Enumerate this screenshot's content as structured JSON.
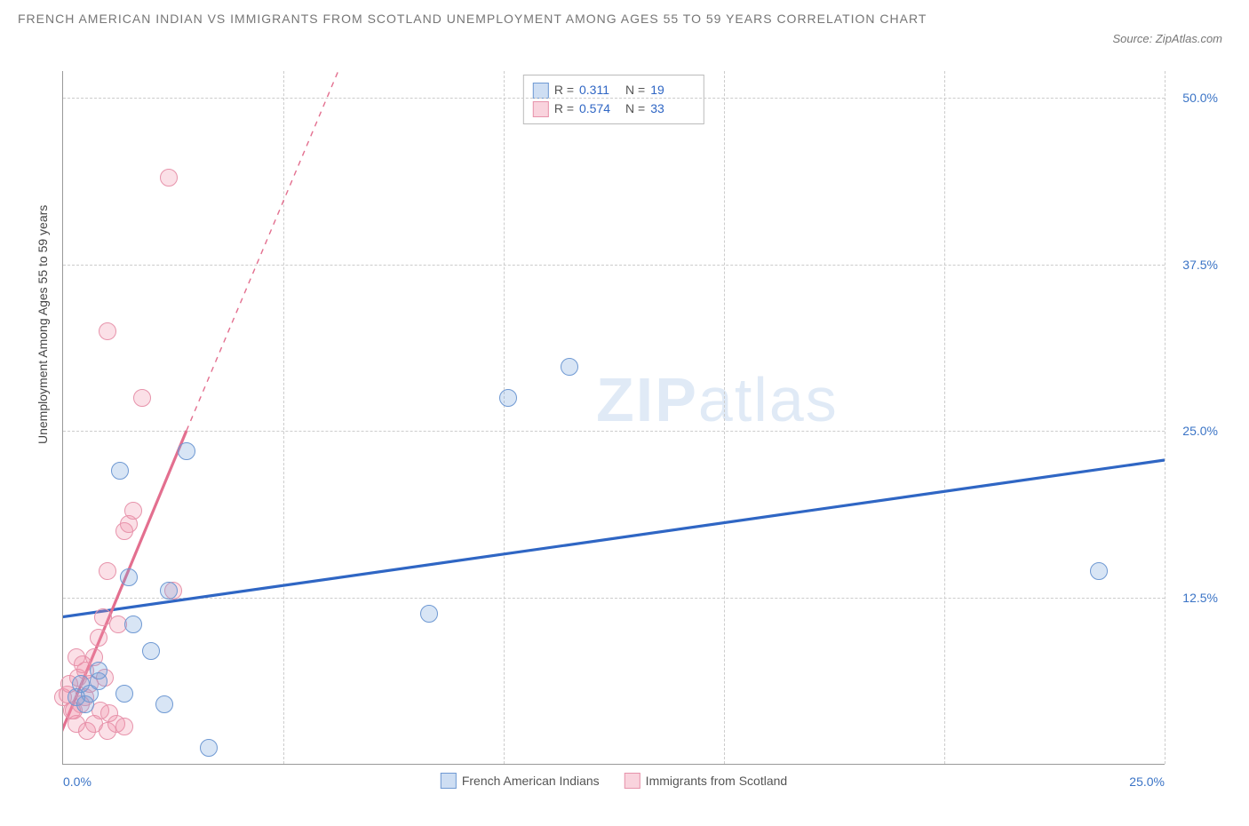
{
  "title": "FRENCH AMERICAN INDIAN VS IMMIGRANTS FROM SCOTLAND UNEMPLOYMENT AMONG AGES 55 TO 59 YEARS CORRELATION CHART",
  "source": "Source: ZipAtlas.com",
  "watermark_a": "ZIP",
  "watermark_b": "atlas",
  "ylabel": "Unemployment Among Ages 55 to 59 years",
  "chart": {
    "type": "scatter",
    "xlim": [
      0,
      25
    ],
    "ylim": [
      0,
      52
    ],
    "xtick_vals": [
      0,
      5,
      10,
      15,
      20,
      25
    ],
    "xtick_labels": [
      "0.0%",
      "",
      "",
      "",
      "",
      "25.0%"
    ],
    "ytick_vals": [
      12.5,
      25,
      37.5,
      50
    ],
    "ytick_labels": [
      "12.5%",
      "25.0%",
      "37.5%",
      "50.0%"
    ],
    "grid_color": "#cccccc",
    "background_color": "#ffffff",
    "axis_color": "#999999",
    "label_color": "#3b74c6",
    "series": {
      "blue": {
        "label": "French American Indians",
        "fill": "rgba(115,160,220,0.28)",
        "stroke": "#6f99d3",
        "line_color": "#2f66c4",
        "R": "0.311",
        "N": "19",
        "trend": {
          "x1": -0.5,
          "y1": 10.8,
          "x2": 25,
          "y2": 22.8,
          "dash_after_x": 25
        },
        "points": [
          [
            0.3,
            5.0
          ],
          [
            0.6,
            5.3
          ],
          [
            0.4,
            6.0
          ],
          [
            0.8,
            6.2
          ],
          [
            1.4,
            5.3
          ],
          [
            2.3,
            4.5
          ],
          [
            2.0,
            8.5
          ],
          [
            1.6,
            10.5
          ],
          [
            2.4,
            13.0
          ],
          [
            1.5,
            14.0
          ],
          [
            3.3,
            1.2
          ],
          [
            1.3,
            22.0
          ],
          [
            2.8,
            23.5
          ],
          [
            8.3,
            11.3
          ],
          [
            10.1,
            27.5
          ],
          [
            11.5,
            29.8
          ],
          [
            23.5,
            14.5
          ],
          [
            0.8,
            7.0
          ],
          [
            0.5,
            4.5
          ]
        ]
      },
      "pink": {
        "label": "Immigrants from Scotland",
        "fill": "rgba(240,145,170,0.40)",
        "stroke": "#e793ab",
        "line_color": "#e36f8f",
        "R": "0.574",
        "N": "33",
        "trend": {
          "x1": -0.4,
          "y1": -0.5,
          "x2": 2.8,
          "y2": 25,
          "dash_after_x": 2.8,
          "dash_x2": 6.5,
          "dash_y2": 54
        },
        "points": [
          [
            0.0,
            5.0
          ],
          [
            0.1,
            5.2
          ],
          [
            0.2,
            4.0
          ],
          [
            0.3,
            3.0
          ],
          [
            0.15,
            6.0
          ],
          [
            0.4,
            4.5
          ],
          [
            0.35,
            6.5
          ],
          [
            0.5,
            5.0
          ],
          [
            0.5,
            7.0
          ],
          [
            0.55,
            2.5
          ],
          [
            0.7,
            3.0
          ],
          [
            0.6,
            6.0
          ],
          [
            0.7,
            8.0
          ],
          [
            0.85,
            4.0
          ],
          [
            0.8,
            9.5
          ],
          [
            0.9,
            11.0
          ],
          [
            1.0,
            2.5
          ],
          [
            1.05,
            3.8
          ],
          [
            1.2,
            3.0
          ],
          [
            1.4,
            2.8
          ],
          [
            1.25,
            10.5
          ],
          [
            1.0,
            14.5
          ],
          [
            1.4,
            17.5
          ],
          [
            1.5,
            18.0
          ],
          [
            1.6,
            19.0
          ],
          [
            1.8,
            27.5
          ],
          [
            2.5,
            13.0
          ],
          [
            1.0,
            32.5
          ],
          [
            2.4,
            44.0
          ],
          [
            0.3,
            8.0
          ],
          [
            0.25,
            4.0
          ],
          [
            0.45,
            7.5
          ],
          [
            0.95,
            6.5
          ]
        ]
      }
    }
  },
  "stats_legend": {
    "r_label": "R = ",
    "n_label": "N = "
  }
}
